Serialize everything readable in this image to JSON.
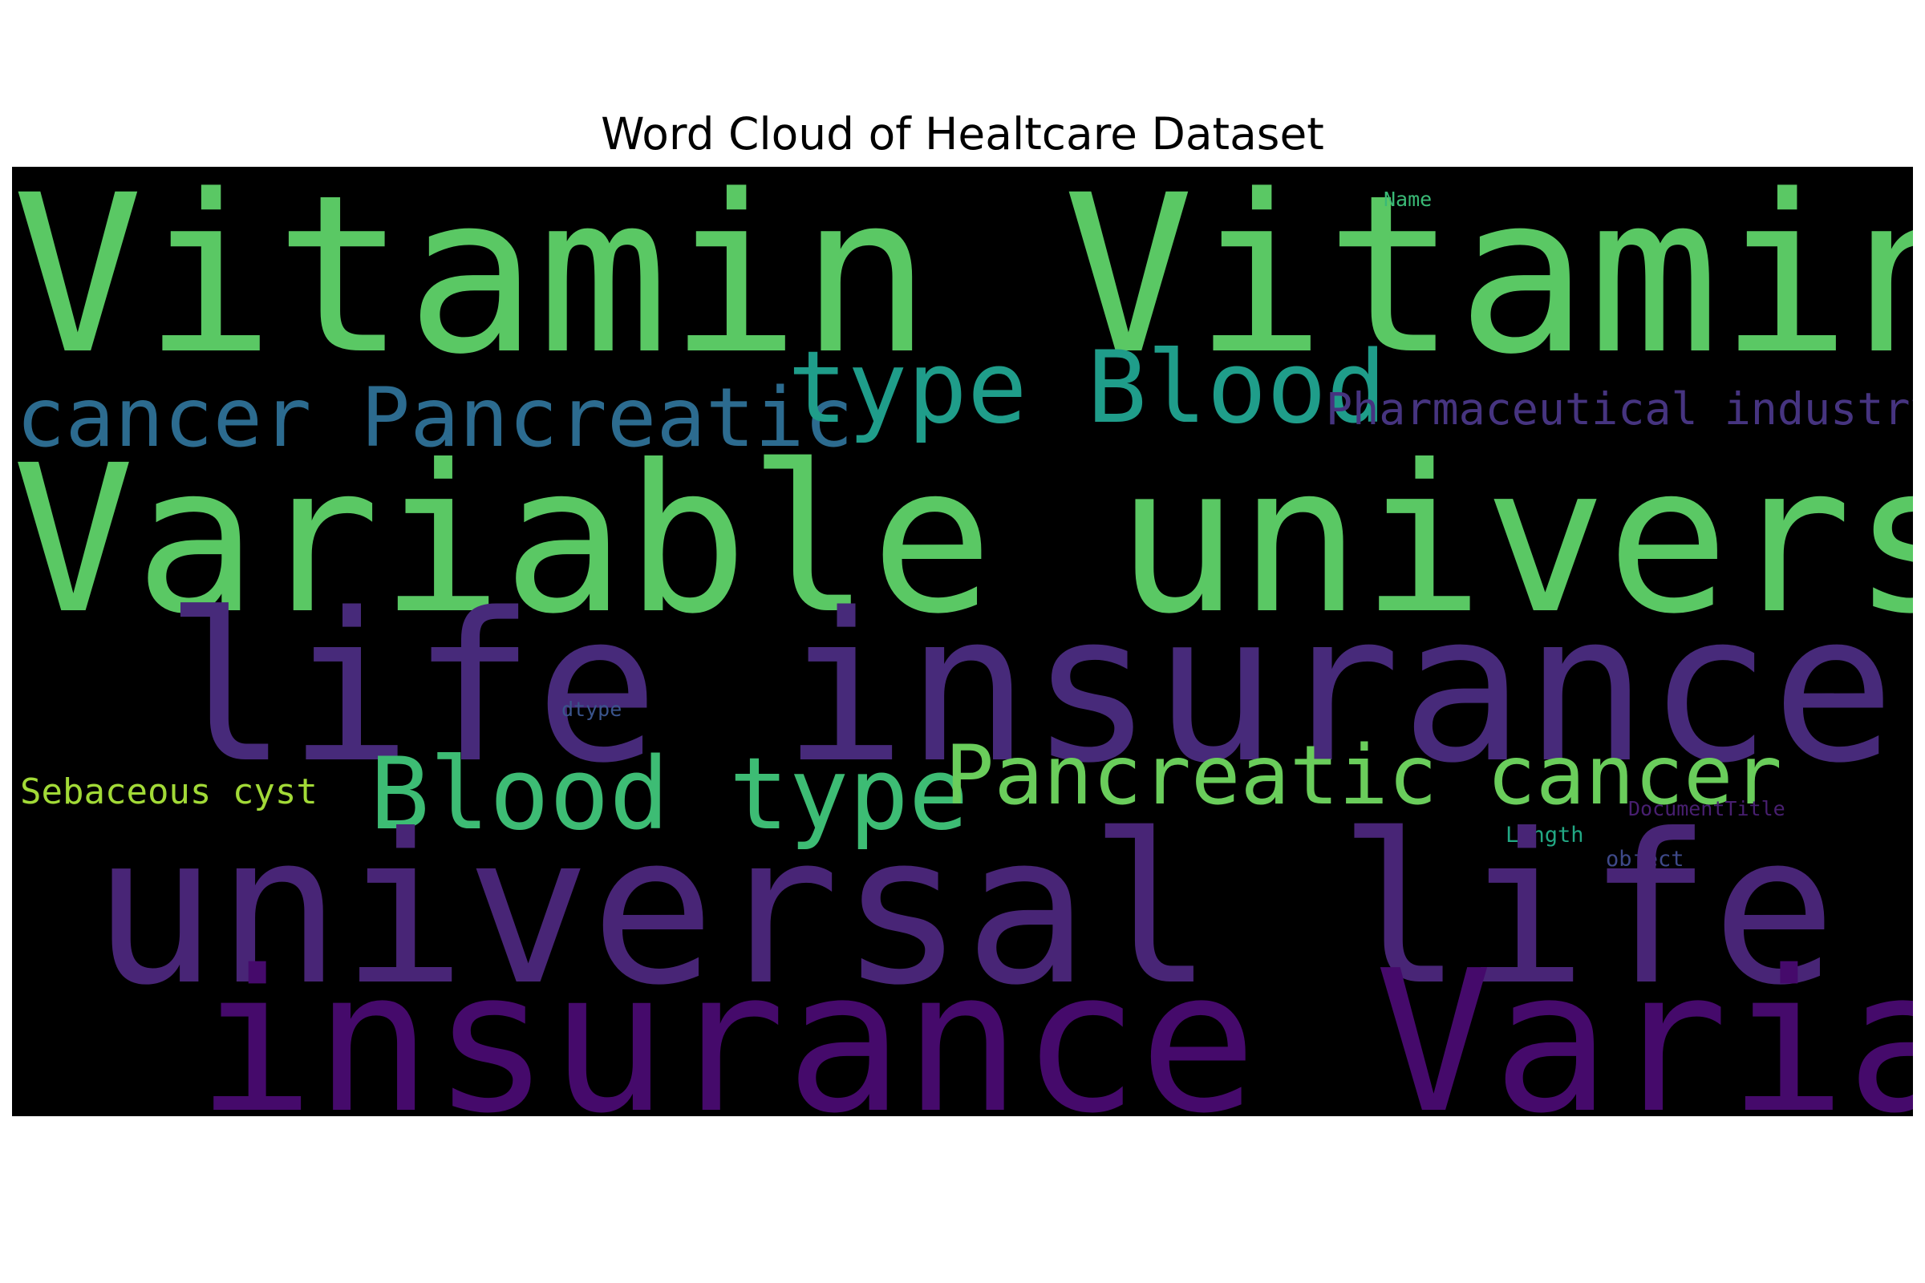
{
  "title": "Word Cloud of Healtcare Dataset",
  "background_color": "#000000",
  "words": {
    "vitamin_vitamin": {
      "text": "Vitamin Vitamin",
      "color": "#5ac864"
    },
    "variable_universal": {
      "text": "Variable universal",
      "color": "#5ac864"
    },
    "life_insurance": {
      "text": "life insurance",
      "color": "#472a7a"
    },
    "universal_life": {
      "text": "universal life",
      "color": "#482576"
    },
    "insurance_variable": {
      "text": "insurance Variable",
      "color": "#450a6b"
    },
    "cancer_pancreatic": {
      "text": "cancer Pancreatic",
      "color": "#2c6b8f"
    },
    "type_blood": {
      "text": "type Blood",
      "color": "#1f9d8a"
    },
    "pharmaceutical_industry": {
      "text": "Pharmaceutical industry",
      "color": "#463480"
    },
    "blood_type": {
      "text": "Blood type",
      "color": "#3dbc74"
    },
    "pancreatic_cancer": {
      "text": "Pancreatic cancer",
      "color": "#6acd5b"
    },
    "sebaceous_cyst": {
      "text": "Sebaceous cyst",
      "color": "#a2da37"
    },
    "name": {
      "text": "Name",
      "color": "#3aba76"
    },
    "dtype": {
      "text": "dtype",
      "color": "#3a548c"
    },
    "document_title": {
      "text": "DocumentTitle",
      "color": "#481f70"
    },
    "length": {
      "text": "Length",
      "color": "#22a884"
    },
    "object": {
      "text": "object",
      "color": "#3e4989"
    }
  }
}
